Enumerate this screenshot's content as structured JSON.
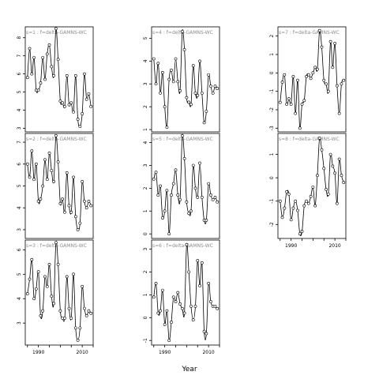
{
  "chart_data": {
    "type": "scatter",
    "xlabel": "Year",
    "ylabel": "",
    "x": [
      1985,
      1986,
      1987,
      1988,
      1989,
      1990,
      1991,
      1992,
      1993,
      1994,
      1995,
      1996,
      1997,
      1998,
      1999,
      2000,
      2001,
      2002,
      2003,
      2004,
      2005,
      2006,
      2007,
      2008,
      2009,
      2010,
      2011,
      2012,
      2013,
      2014
    ],
    "xticks": [
      1990,
      2010
    ],
    "xlim": [
      1984,
      2015
    ],
    "panels": [
      {
        "label": "s=1 : f=delta-GAMNS-WC",
        "ylim": [
          2.8,
          8.6
        ],
        "yticks": [
          3,
          4,
          5,
          6,
          7,
          8
        ],
        "values": [
          5.8,
          7.4,
          6.0,
          6.9,
          5.1,
          5.1,
          5.5,
          6.9,
          5.7,
          7.1,
          7.6,
          6.4,
          5.9,
          8.5,
          6.8,
          4.5,
          4.4,
          4.2,
          5.9,
          4.3,
          4.4,
          3.9,
          5.9,
          3.5,
          3.1,
          3.8,
          6.0,
          4.6,
          4.9,
          4.2
        ]
      },
      {
        "label": "s=2 : f=delta-GAMNS-WC",
        "ylim": [
          2.6,
          7.4
        ],
        "yticks": [
          3,
          4,
          5,
          6,
          7
        ],
        "values": [
          6.0,
          5.4,
          6.6,
          5.3,
          6.0,
          4.3,
          4.4,
          5.0,
          6.2,
          5.3,
          6.5,
          5.7,
          5.2,
          7.3,
          6.1,
          4.2,
          4.4,
          3.8,
          5.6,
          4.1,
          3.8,
          5.4,
          3.6,
          3.0,
          3.3,
          5.2,
          4.3,
          4.0,
          4.3,
          4.1
        ]
      },
      {
        "label": "s=3 : f=delta-GAMNS-WC",
        "ylim": [
          2.1,
          6.4
        ],
        "yticks": [
          3,
          4,
          5,
          6
        ],
        "values": [
          4.2,
          4.8,
          5.6,
          4.0,
          4.4,
          5.1,
          3.3,
          3.5,
          4.9,
          4.5,
          5.4,
          4.1,
          3.8,
          6.3,
          5.4,
          3.5,
          3.2,
          3.2,
          4.9,
          3.6,
          3.2,
          5.0,
          2.8,
          2.3,
          2.8,
          4.5,
          3.6,
          3.3,
          3.5,
          3.4
        ]
      },
      {
        "label": "s=4 : f=delta-GAMNS-WC",
        "ylim": [
          0.9,
          5.5
        ],
        "yticks": [
          1,
          2,
          3,
          4,
          5
        ],
        "values": [
          4.1,
          3.0,
          3.9,
          2.6,
          3.5,
          2.0,
          1.1,
          3.2,
          3.6,
          3.1,
          4.1,
          3.1,
          2.7,
          5.3,
          4.5,
          2.4,
          2.2,
          2.1,
          3.8,
          2.6,
          2.5,
          4.0,
          2.6,
          1.3,
          1.8,
          3.4,
          2.9,
          2.6,
          2.9,
          2.8
        ]
      },
      {
        "label": "s=5 : f=delta-GAMNS-WC",
        "ylim": [
          -0.2,
          4.4
        ],
        "yticks": [
          0,
          1,
          2,
          3,
          4
        ],
        "values": [
          2.4,
          2.7,
          1.7,
          2.1,
          0.7,
          1.0,
          1.9,
          0.0,
          1.7,
          2.2,
          2.8,
          1.7,
          1.5,
          4.3,
          3.3,
          1.4,
          0.9,
          1.0,
          3.0,
          2.0,
          1.6,
          3.1,
          1.6,
          0.6,
          0.6,
          2.2,
          1.7,
          1.5,
          1.6,
          1.4
        ]
      },
      {
        "label": "s=6 : f=delta-GAMNS-WC",
        "ylim": [
          -1.2,
          3.4
        ],
        "yticks": [
          -1,
          0,
          1,
          2,
          3
        ],
        "values": [
          0.9,
          1.5,
          0.2,
          0.3,
          1.2,
          -0.3,
          0.3,
          -1.0,
          -0.2,
          0.9,
          0.7,
          1.1,
          0.6,
          0.4,
          0.2,
          3.2,
          2.0,
          0.5,
          -0.1,
          0.5,
          2.5,
          1.4,
          2.4,
          -0.6,
          -0.7,
          1.5,
          0.7,
          0.5,
          0.5,
          0.4
        ]
      },
      {
        "label": "s=7 : f=delta-GAMNS-WC",
        "ylim": [
          -3.2,
          2.5
        ],
        "yticks": [
          -3,
          -2,
          -1,
          0,
          1,
          2
        ],
        "values": [
          -1.6,
          -0.5,
          -0.1,
          -1.7,
          -1.4,
          -1.7,
          -0.2,
          -2.2,
          -0.4,
          -3.0,
          -1.7,
          -1.5,
          -0.2,
          -0.1,
          -0.3,
          0.0,
          0.3,
          0.2,
          2.3,
          1.4,
          -0.4,
          -0.6,
          -1.0,
          1.7,
          0.3,
          1.6,
          -0.7,
          -2.2,
          -0.6,
          -0.4
        ]
      },
      {
        "label": "s=8 : f=delta-GAMNS-WC",
        "ylim": [
          -2.6,
          1.9
        ],
        "yticks": [
          -2,
          -1,
          0,
          1
        ],
        "values": [
          -1.0,
          -1.7,
          -1.3,
          -0.6,
          -0.7,
          -1.8,
          -1.3,
          -1.0,
          -1.4,
          -2.4,
          -2.3,
          -1.2,
          -1.0,
          -1.1,
          -0.8,
          -0.4,
          -1.2,
          0.1,
          1.7,
          1.2,
          0.4,
          -0.5,
          -0.7,
          1.0,
          0.5,
          0.2,
          -1.1,
          0.8,
          0.1,
          -0.2
        ]
      }
    ]
  }
}
